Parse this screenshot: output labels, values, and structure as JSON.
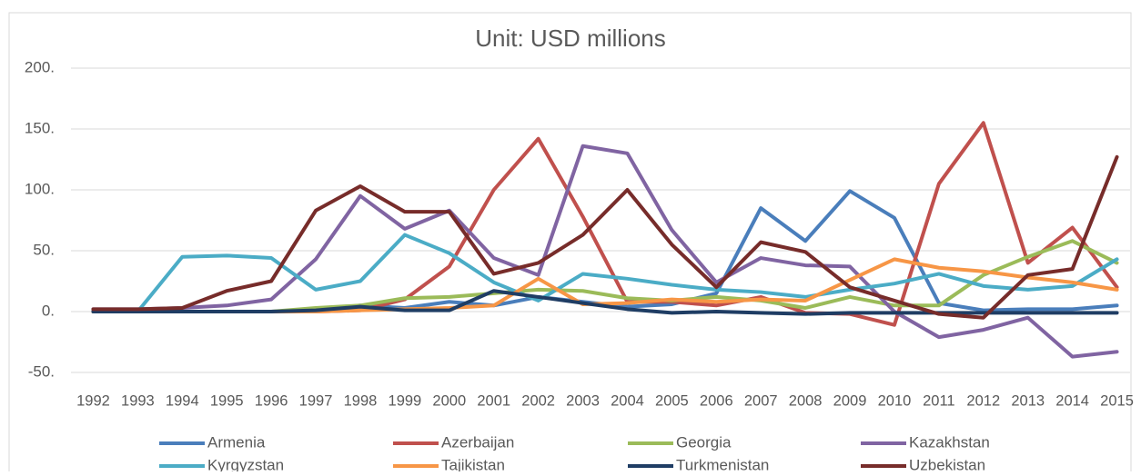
{
  "chart_data": {
    "type": "line",
    "title": "Unit: USD millions",
    "categories": [
      "1992",
      "1993",
      "1994",
      "1995",
      "1996",
      "1997",
      "1998",
      "1999",
      "2000",
      "2001",
      "2002",
      "2003",
      "2004",
      "2005",
      "2006",
      "2007",
      "2008",
      "2009",
      "2010",
      "2011",
      "2012",
      "2013",
      "2014",
      "2015"
    ],
    "ylim": [
      -50,
      200
    ],
    "yticks": [
      {
        "value": -50,
        "label": "-50."
      },
      {
        "value": 0,
        "label": "0."
      },
      {
        "value": 50,
        "label": "50."
      },
      {
        "value": 100,
        "label": "100."
      },
      {
        "value": 150,
        "label": "150."
      },
      {
        "value": 200,
        "label": "200."
      }
    ],
    "grid": true,
    "legend": "bottom",
    "series": [
      {
        "name": "Armenia",
        "color": "#4a7ebb",
        "values": [
          0,
          0,
          0,
          0,
          0,
          1,
          5,
          3,
          8,
          5,
          12,
          8,
          4,
          6,
          15,
          85,
          58,
          99,
          77,
          7,
          1,
          2,
          2,
          5
        ]
      },
      {
        "name": "Azerbaijan",
        "color": "#c0504d",
        "values": [
          0,
          0,
          0,
          0,
          0,
          0,
          1,
          10,
          37,
          100,
          142,
          78,
          8,
          8,
          5,
          12,
          -1,
          -2,
          -11,
          105,
          155,
          40,
          69,
          20
        ]
      },
      {
        "name": "Georgia",
        "color": "#9bbb59",
        "values": [
          0,
          0,
          0,
          0,
          0,
          3,
          5,
          11,
          12,
          15,
          18,
          17,
          11,
          9,
          12,
          9,
          3,
          12,
          5,
          5,
          30,
          45,
          58,
          40
        ]
      },
      {
        "name": "Kazakhstan",
        "color": "#8064a2",
        "values": [
          2,
          2,
          3,
          5,
          10,
          43,
          95,
          68,
          83,
          44,
          30,
          136,
          130,
          67,
          24,
          44,
          38,
          37,
          0,
          -21,
          -15,
          -5,
          -37,
          -33
        ]
      },
      {
        "name": "Kyrgyzstan",
        "color": "#4bacc6",
        "values": [
          0,
          0,
          45,
          46,
          44,
          18,
          25,
          63,
          48,
          24,
          9,
          31,
          27,
          22,
          18,
          16,
          12,
          18,
          23,
          31,
          21,
          18,
          21,
          43
        ]
      },
      {
        "name": "Tajikistan",
        "color": "#f79646",
        "values": [
          0,
          0,
          0,
          0,
          0,
          0,
          1,
          2,
          3,
          5,
          27,
          6,
          7,
          10,
          8,
          10,
          9,
          26,
          43,
          36,
          33,
          28,
          24,
          18
        ]
      },
      {
        "name": "Turkmenistan",
        "color": "#1f3d64",
        "values": [
          0,
          0,
          0,
          0,
          0,
          1,
          4,
          1,
          1,
          17,
          12,
          7,
          2,
          -1,
          0,
          -1,
          -2,
          -1,
          -1,
          -1,
          -1,
          -1,
          -1,
          -1
        ]
      },
      {
        "name": "Uzbekistan",
        "color": "#772c2a",
        "values": [
          2,
          2,
          3,
          17,
          25,
          83,
          103,
          82,
          82,
          31,
          40,
          63,
          100,
          55,
          20,
          57,
          49,
          20,
          9,
          -2,
          -5,
          30,
          35,
          127
        ]
      }
    ]
  }
}
